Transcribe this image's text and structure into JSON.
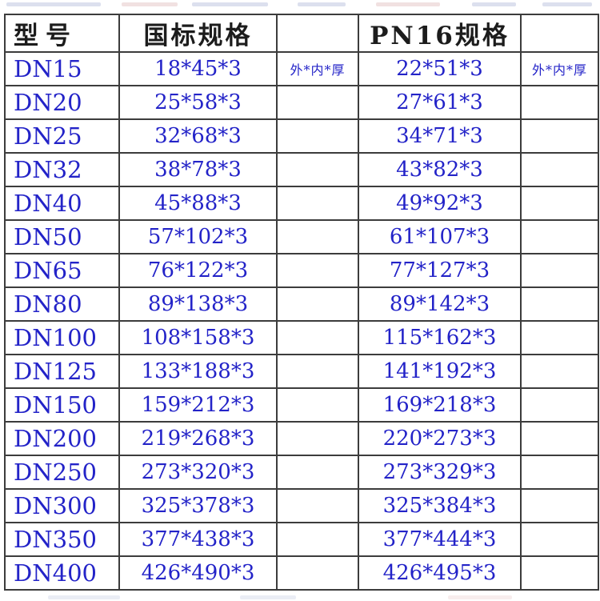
{
  "page": {
    "background_color": "#ffffff",
    "value_text_color": "#2323c8",
    "header_text_color": "#1c1c1c",
    "border_color": "#3c3c3c"
  },
  "table": {
    "headers": {
      "model": "型号",
      "gb": "国标规格",
      "gb_unit": "",
      "pn16": "PN16规格",
      "pn16_unit": ""
    },
    "unit_label": "外*内*厚",
    "rows": [
      {
        "model": "DN15",
        "gb": "18*45*3",
        "gb_unit": "外*内*厚",
        "pn16": "22*51*3",
        "pn16_unit": "外*内*厚"
      },
      {
        "model": "DN20",
        "gb": "25*58*3",
        "gb_unit": "",
        "pn16": "27*61*3",
        "pn16_unit": ""
      },
      {
        "model": "DN25",
        "gb": "32*68*3",
        "gb_unit": "",
        "pn16": "34*71*3",
        "pn16_unit": ""
      },
      {
        "model": "DN32",
        "gb": "38*78*3",
        "gb_unit": "",
        "pn16": "43*82*3",
        "pn16_unit": ""
      },
      {
        "model": "DN40",
        "gb": "45*88*3",
        "gb_unit": "",
        "pn16": "49*92*3",
        "pn16_unit": ""
      },
      {
        "model": "DN50",
        "gb": "57*102*3",
        "gb_unit": "",
        "pn16": "61*107*3",
        "pn16_unit": ""
      },
      {
        "model": "DN65",
        "gb": "76*122*3",
        "gb_unit": "",
        "pn16": "77*127*3",
        "pn16_unit": ""
      },
      {
        "model": "DN80",
        "gb": "89*138*3",
        "gb_unit": "",
        "pn16": "89*142*3",
        "pn16_unit": ""
      },
      {
        "model": "DN100",
        "gb": "108*158*3",
        "gb_unit": "",
        "pn16": "115*162*3",
        "pn16_unit": ""
      },
      {
        "model": "DN125",
        "gb": "133*188*3",
        "gb_unit": "",
        "pn16": "141*192*3",
        "pn16_unit": ""
      },
      {
        "model": "DN150",
        "gb": "159*212*3",
        "gb_unit": "",
        "pn16": "169*218*3",
        "pn16_unit": ""
      },
      {
        "model": "DN200",
        "gb": "219*268*3",
        "gb_unit": "",
        "pn16": "220*273*3",
        "pn16_unit": ""
      },
      {
        "model": "DN250",
        "gb": "273*320*3",
        "gb_unit": "",
        "pn16": "273*329*3",
        "pn16_unit": ""
      },
      {
        "model": "DN300",
        "gb": "325*378*3",
        "gb_unit": "",
        "pn16": "325*384*3",
        "pn16_unit": ""
      },
      {
        "model": "DN350",
        "gb": "377*438*3",
        "gb_unit": "",
        "pn16": "377*444*3",
        "pn16_unit": ""
      },
      {
        "model": "DN400",
        "gb": "426*490*3",
        "gb_unit": "",
        "pn16": "426*495*3",
        "pn16_unit": ""
      }
    ]
  },
  "chart_data": {
    "type": "table",
    "title": "",
    "columns": [
      "型号",
      "国标规格",
      "外*内*厚",
      "PN16规格",
      "外*内*厚"
    ],
    "rows": [
      [
        "DN15",
        "18*45*3",
        "外*内*厚",
        "22*51*3",
        "外*内*厚"
      ],
      [
        "DN20",
        "25*58*3",
        "",
        "27*61*3",
        ""
      ],
      [
        "DN25",
        "32*68*3",
        "",
        "34*71*3",
        ""
      ],
      [
        "DN32",
        "38*78*3",
        "",
        "43*82*3",
        ""
      ],
      [
        "DN40",
        "45*88*3",
        "",
        "49*92*3",
        ""
      ],
      [
        "DN50",
        "57*102*3",
        "",
        "61*107*3",
        ""
      ],
      [
        "DN65",
        "76*122*3",
        "",
        "77*127*3",
        ""
      ],
      [
        "DN80",
        "89*138*3",
        "",
        "89*142*3",
        ""
      ],
      [
        "DN100",
        "108*158*3",
        "",
        "115*162*3",
        ""
      ],
      [
        "DN125",
        "133*188*3",
        "",
        "141*192*3",
        ""
      ],
      [
        "DN150",
        "159*212*3",
        "",
        "169*218*3",
        ""
      ],
      [
        "DN200",
        "219*268*3",
        "",
        "220*273*3",
        ""
      ],
      [
        "DN250",
        "273*320*3",
        "",
        "273*329*3",
        ""
      ],
      [
        "DN300",
        "325*378*3",
        "",
        "325*384*3",
        ""
      ],
      [
        "DN350",
        "377*438*3",
        "",
        "377*444*3",
        ""
      ],
      [
        "DN400",
        "426*490*3",
        "",
        "426*495*3",
        ""
      ]
    ]
  }
}
